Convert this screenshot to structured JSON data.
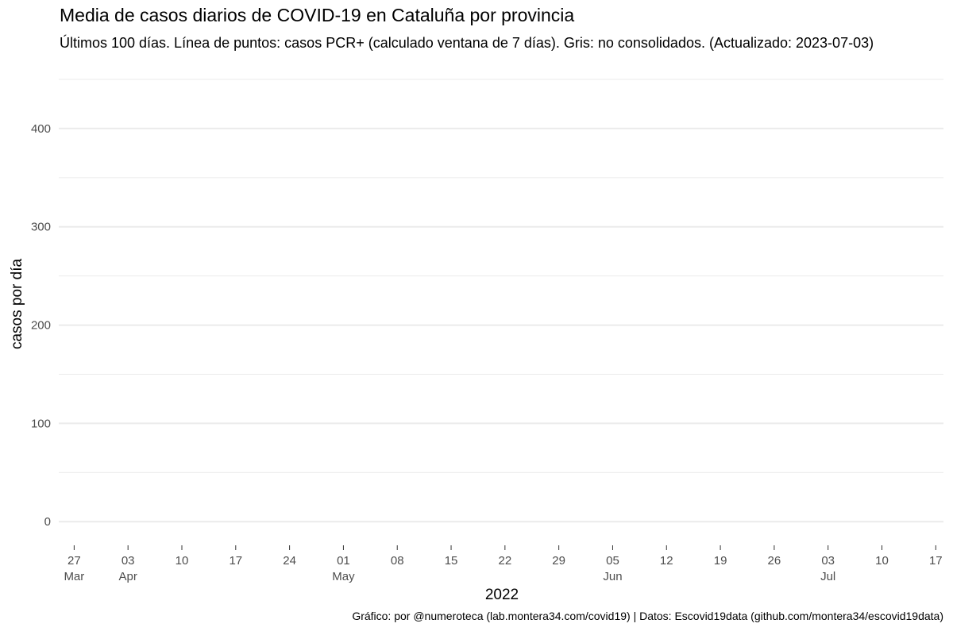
{
  "chart_data": {
    "type": "line",
    "title": "Media de casos diarios de COVID-19 en Cataluña por provincia",
    "subtitle": "Últimos 100 días. Línea de puntos: casos PCR+ (calculado ventana de 7 días). Gris: no consolidados. (Actualizado: 2023-07-03)",
    "xlabel": "2022",
    "ylabel": "casos por día",
    "caption": "Gráfico: por @numeroteca (lab.montera34.com/covid19) | Datos: Escovid19data (github.com/montera34/escovid19data)",
    "ylim": [
      -20,
      450
    ],
    "y_ticks": [
      0,
      100,
      200,
      300,
      400
    ],
    "y_minor_ticks": [
      50,
      150,
      250,
      350,
      450
    ],
    "xlim": [
      "2022-03-25",
      "2022-07-18"
    ],
    "x_ticks": [
      {
        "date": "2022-03-27",
        "day": "27",
        "month": "Mar"
      },
      {
        "date": "2022-04-03",
        "day": "03",
        "month": "Apr"
      },
      {
        "date": "2022-04-10",
        "day": "10",
        "month": ""
      },
      {
        "date": "2022-04-17",
        "day": "17",
        "month": ""
      },
      {
        "date": "2022-04-24",
        "day": "24",
        "month": ""
      },
      {
        "date": "2022-05-01",
        "day": "01",
        "month": "May"
      },
      {
        "date": "2022-05-08",
        "day": "08",
        "month": ""
      },
      {
        "date": "2022-05-15",
        "day": "15",
        "month": ""
      },
      {
        "date": "2022-05-22",
        "day": "22",
        "month": ""
      },
      {
        "date": "2022-05-29",
        "day": "29",
        "month": ""
      },
      {
        "date": "2022-06-05",
        "day": "05",
        "month": "Jun"
      },
      {
        "date": "2022-06-12",
        "day": "12",
        "month": ""
      },
      {
        "date": "2022-06-19",
        "day": "19",
        "month": ""
      },
      {
        "date": "2022-06-26",
        "day": "26",
        "month": ""
      },
      {
        "date": "2022-07-03",
        "day": "03",
        "month": "Jul"
      },
      {
        "date": "2022-07-10",
        "day": "10",
        "month": ""
      },
      {
        "date": "2022-07-17",
        "day": "17",
        "month": ""
      }
    ],
    "series": [],
    "grid": true,
    "colors": {
      "grid": "#ebebeb",
      "tick_text": "#4d4d4d",
      "tick_mark": "#333333"
    }
  }
}
